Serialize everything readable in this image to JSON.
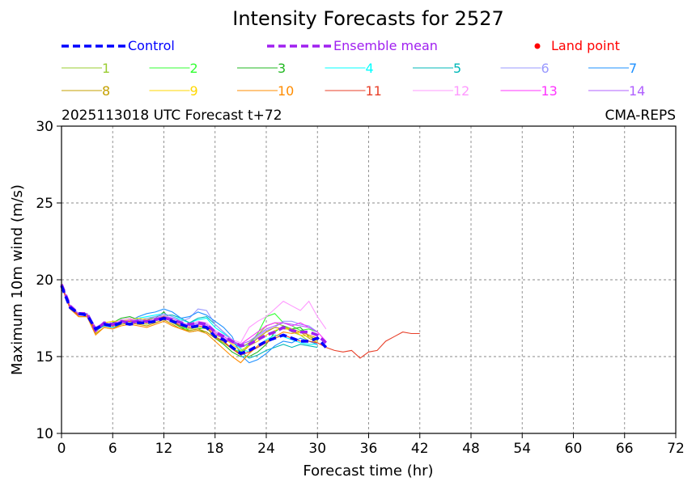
{
  "chart_data": {
    "type": "line",
    "title": "Intensity Forecasts for 2527",
    "subtitle_left": "2025113018 UTC Forecast t+72",
    "subtitle_right": "CMA-REPS",
    "xlabel": "Forecast time (hr)",
    "ylabel": "Maximum 10m wind (m/s)",
    "xlim": [
      0,
      72
    ],
    "ylim": [
      10,
      30
    ],
    "xticks": [
      0,
      6,
      12,
      18,
      24,
      30,
      36,
      42,
      48,
      54,
      60,
      66,
      72
    ],
    "yticks": [
      10,
      15,
      20,
      25,
      30
    ],
    "grid": true,
    "legend": {
      "control": "Control",
      "ensemble_mean": "Ensemble mean",
      "land_point": "Land point"
    },
    "colors": {
      "control": "#0000ff",
      "ensemble_mean": "#a020f0",
      "land_point": "#ff0000"
    },
    "control": {
      "x": [
        0,
        1,
        2,
        3,
        4,
        5,
        6,
        7,
        8,
        9,
        10,
        11,
        12,
        13,
        14,
        15,
        16,
        17,
        18,
        19,
        20,
        21,
        22,
        23,
        24,
        25,
        26,
        27,
        28,
        29,
        30,
        31
      ],
      "y": [
        19.6,
        18.2,
        17.8,
        17.7,
        16.8,
        17.1,
        17.0,
        17.2,
        17.1,
        17.2,
        17.2,
        17.3,
        17.5,
        17.3,
        17.1,
        16.9,
        17.0,
        16.9,
        16.3,
        16.1,
        15.6,
        15.2,
        15.4,
        15.7,
        16.0,
        16.2,
        16.4,
        16.2,
        16.0,
        16.0,
        16.2,
        15.6
      ]
    },
    "ensemble_mean": {
      "x": [
        0,
        1,
        2,
        3,
        4,
        5,
        6,
        7,
        8,
        9,
        10,
        11,
        12,
        13,
        14,
        15,
        16,
        17,
        18,
        19,
        20,
        21,
        22,
        23,
        24,
        25,
        26,
        27,
        28,
        29,
        30,
        31
      ],
      "y": [
        19.7,
        18.3,
        17.8,
        17.8,
        16.7,
        17.2,
        17.1,
        17.3,
        17.2,
        17.3,
        17.3,
        17.4,
        17.5,
        17.4,
        17.2,
        17.1,
        17.2,
        17.1,
        16.6,
        16.3,
        16.0,
        15.7,
        15.8,
        16.1,
        16.4,
        16.6,
        16.9,
        16.7,
        16.6,
        16.6,
        16.4,
        15.9
      ]
    },
    "members": [
      {
        "name": "1",
        "color": "#9acd32",
        "y": [
          19.6,
          18.2,
          17.6,
          17.6,
          16.6,
          17.1,
          17.0,
          17.3,
          17.4,
          17.2,
          17.1,
          17.3,
          17.6,
          17.2,
          16.9,
          16.8,
          16.9,
          16.8,
          16.4,
          16.2,
          15.9,
          15.6,
          15.9,
          16.4,
          17.0,
          17.2,
          17.0,
          16.6,
          16.4,
          16.0,
          15.9
        ]
      },
      {
        "name": "2",
        "color": "#33ff33",
        "y": [
          19.6,
          18.3,
          17.7,
          17.8,
          16.8,
          17.2,
          17.1,
          17.4,
          17.5,
          17.3,
          17.2,
          17.4,
          17.7,
          17.3,
          17.0,
          16.7,
          16.8,
          16.9,
          16.2,
          16.0,
          15.5,
          15.3,
          15.8,
          16.5,
          17.6,
          17.8,
          17.2,
          17.0,
          16.7,
          16.8,
          16.6
        ]
      },
      {
        "name": "3",
        "color": "#22b822",
        "y": [
          19.7,
          18.2,
          17.8,
          17.7,
          16.7,
          17.1,
          17.2,
          17.5,
          17.6,
          17.4,
          17.3,
          17.5,
          17.9,
          17.3,
          16.9,
          16.6,
          16.7,
          16.6,
          16.2,
          15.8,
          15.3,
          15.0,
          15.0,
          15.3,
          15.8,
          16.6,
          17.0,
          16.8,
          16.9,
          16.3,
          16.1
        ]
      },
      {
        "name": "4",
        "color": "#00ffff",
        "y": [
          19.6,
          18.3,
          17.8,
          17.7,
          16.8,
          17.0,
          17.1,
          17.2,
          17.3,
          17.5,
          17.6,
          17.7,
          17.8,
          17.6,
          17.4,
          17.2,
          17.4,
          17.5,
          16.9,
          16.5,
          16.1,
          15.5,
          15.3,
          15.6,
          16.1,
          16.4,
          16.3,
          16.1,
          15.9,
          15.8,
          15.8
        ]
      },
      {
        "name": "5",
        "color": "#00b8b8",
        "y": [
          19.7,
          18.2,
          17.7,
          17.7,
          16.7,
          17.0,
          16.9,
          17.1,
          17.2,
          17.3,
          17.4,
          17.6,
          17.7,
          17.7,
          17.5,
          17.2,
          17.5,
          17.6,
          17.1,
          16.6,
          16.1,
          15.3,
          14.9,
          15.1,
          15.4,
          15.6,
          15.8,
          15.6,
          15.8,
          15.7,
          15.6
        ]
      },
      {
        "name": "6",
        "color": "#9999ff",
        "y": [
          19.6,
          18.3,
          17.7,
          17.8,
          16.9,
          17.2,
          17.1,
          17.3,
          17.3,
          17.4,
          17.5,
          17.6,
          17.8,
          17.6,
          17.3,
          17.5,
          18.1,
          18.0,
          17.1,
          16.6,
          16.1,
          15.6,
          15.8,
          16.3,
          16.7,
          16.9,
          17.3,
          17.3,
          17.1,
          17.0,
          16.6
        ]
      },
      {
        "name": "7",
        "color": "#1e90ff",
        "y": [
          19.7,
          18.2,
          17.8,
          17.7,
          16.8,
          17.1,
          17.0,
          17.2,
          17.3,
          17.6,
          17.8,
          17.9,
          18.1,
          17.9,
          17.5,
          17.6,
          17.9,
          17.7,
          17.3,
          16.9,
          16.3,
          15.1,
          14.6,
          14.8,
          15.2,
          15.7,
          16.0,
          15.9,
          16.2,
          16.0,
          15.8
        ]
      },
      {
        "name": "8",
        "color": "#c4a000",
        "y": [
          19.6,
          18.2,
          17.6,
          17.6,
          16.5,
          16.9,
          16.8,
          17.1,
          17.2,
          17.1,
          17.0,
          17.2,
          17.4,
          17.1,
          16.8,
          16.7,
          16.8,
          16.6,
          16.2,
          15.9,
          15.5,
          15.2,
          15.7,
          16.2,
          16.6,
          16.9,
          16.8,
          16.8,
          16.6,
          16.2,
          15.9
        ]
      },
      {
        "name": "9",
        "color": "#ffd700",
        "y": [
          19.7,
          18.3,
          17.8,
          17.7,
          16.8,
          17.2,
          17.3,
          17.3,
          17.4,
          17.5,
          17.4,
          17.5,
          17.6,
          17.4,
          17.1,
          16.9,
          17.0,
          16.9,
          16.5,
          16.2,
          15.8,
          15.4,
          15.7,
          16.0,
          16.4,
          16.7,
          16.9,
          16.8,
          16.4,
          16.3,
          16.0
        ]
      },
      {
        "name": "10",
        "color": "#ff8c00",
        "y": [
          19.6,
          18.1,
          17.6,
          17.6,
          16.4,
          16.9,
          16.8,
          17.0,
          17.1,
          17.0,
          16.9,
          17.1,
          17.3,
          17.0,
          16.8,
          16.6,
          16.7,
          16.5,
          16.0,
          15.5,
          15.0,
          14.6,
          15.2,
          15.7,
          16.0,
          16.3,
          16.6,
          16.5,
          16.6,
          16.4,
          16.2
        ]
      },
      {
        "name": "12",
        "color": "#ff99ff",
        "y": [
          19.7,
          18.3,
          17.8,
          17.8,
          16.9,
          17.2,
          17.1,
          17.4,
          17.5,
          17.3,
          17.3,
          17.5,
          17.7,
          17.5,
          17.2,
          17.1,
          17.3,
          17.2,
          16.7,
          16.4,
          16.1,
          15.9,
          16.9,
          17.3,
          17.6,
          18.1,
          18.6,
          18.3,
          18.0,
          18.6,
          17.6,
          16.8
        ]
      },
      {
        "name": "13",
        "color": "#ff33ff",
        "y": [
          19.6,
          18.2,
          17.7,
          17.7,
          16.8,
          17.1,
          17.0,
          17.2,
          17.4,
          17.3,
          17.2,
          17.4,
          17.6,
          17.3,
          17.0,
          16.9,
          17.1,
          17.0,
          16.5,
          16.2,
          15.9,
          15.8,
          16.2,
          16.6,
          17.0,
          17.2,
          17.2,
          17.0,
          17.2,
          16.9,
          16.6,
          16.0
        ]
      },
      {
        "name": "14",
        "color": "#b060ff",
        "y": [
          19.7,
          18.3,
          17.8,
          17.8,
          16.9,
          17.2,
          17.1,
          17.3,
          17.3,
          17.4,
          17.3,
          17.5,
          17.6,
          17.5,
          17.2,
          17.0,
          17.2,
          17.1,
          16.6,
          16.3,
          16.0,
          15.8,
          16.0,
          16.4,
          16.8,
          17.0,
          17.2,
          17.1,
          17.0,
          16.9,
          16.6
        ]
      }
    ],
    "member_11": {
      "name": "11",
      "color": "#e8402a",
      "x": [
        0,
        1,
        2,
        3,
        4,
        5,
        6,
        7,
        8,
        9,
        10,
        11,
        12,
        13,
        14,
        15,
        16,
        17,
        18,
        19,
        20,
        21,
        22,
        23,
        24,
        25,
        26,
        27,
        28,
        29,
        30,
        31,
        32,
        33,
        34,
        35,
        36,
        37,
        38,
        39,
        40,
        41,
        42
      ],
      "y": [
        19.6,
        18.2,
        17.7,
        17.7,
        16.7,
        17.1,
        17.0,
        17.2,
        17.3,
        17.3,
        17.2,
        17.4,
        17.6,
        17.3,
        17.0,
        16.9,
        17.0,
        16.9,
        16.3,
        16.0,
        15.5,
        15.1,
        15.3,
        15.6,
        15.9,
        16.2,
        16.4,
        16.2,
        16.0,
        16.0,
        15.9,
        15.6,
        15.4,
        15.3,
        15.4,
        14.9,
        15.3,
        15.4,
        16.0,
        16.3,
        16.6,
        16.5,
        16.5
      ]
    }
  }
}
